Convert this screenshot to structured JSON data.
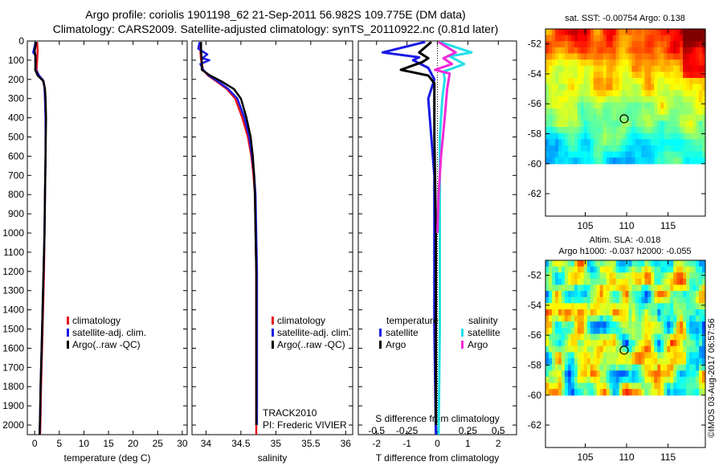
{
  "header": {
    "title_line1": "Argo profile: coriolis 1901198_62 21-Sep-2011 56.982S 109.775E (DM data)",
    "title_line2": "Climatology: CARS2009. Satellite-adjusted climatology: synTS_20110922.nc (0.81d later)"
  },
  "colors": {
    "climatology": "#e8141c",
    "satellite": "#1a1ae6",
    "argo": "#000000",
    "sat_salinity": "#22e0e8",
    "argo_salinity": "#f02ad8"
  },
  "depth_axis": {
    "ylim": [
      0,
      2050
    ],
    "ticks": [
      0,
      100,
      200,
      300,
      400,
      500,
      600,
      700,
      800,
      900,
      1000,
      1100,
      1200,
      1300,
      1400,
      1500,
      1600,
      1700,
      1800,
      1900,
      2000
    ]
  },
  "chart_data": [
    {
      "type": "line",
      "id": "temperature",
      "xlabel": "temperature (deg C)",
      "xlim": [
        -1.5,
        31
      ],
      "xticks": [
        0,
        5,
        10,
        15,
        20,
        25,
        30
      ],
      "legend": [
        "climatology",
        "satellite-adj. clim.",
        "Argo(..raw -QC)"
      ],
      "series": [
        {
          "name": "climatology",
          "color": "#e8141c",
          "points": [
            [
              0.5,
              5
            ],
            [
              0.6,
              50
            ],
            [
              0.5,
              100
            ],
            [
              0.4,
              150
            ],
            [
              0.9,
              185
            ],
            [
              1.6,
              200
            ],
            [
              2.0,
              240
            ],
            [
              2.1,
              300
            ],
            [
              2.2,
              400
            ],
            [
              2.2,
              600
            ],
            [
              2.1,
              800
            ],
            [
              2.0,
              1000
            ],
            [
              1.9,
              1200
            ],
            [
              1.7,
              1400
            ],
            [
              1.5,
              1600
            ],
            [
              1.3,
              1800
            ],
            [
              1.2,
              1950
            ],
            [
              1.1,
              2050
            ]
          ]
        },
        {
          "name": "satellite-adj. clim.",
          "color": "#1a1ae6",
          "points": [
            [
              0.2,
              5
            ],
            [
              -0.3,
              60
            ],
            [
              0.2,
              75
            ],
            [
              0.1,
              100
            ],
            [
              0.2,
              150
            ],
            [
              0.9,
              180
            ],
            [
              1.7,
              205
            ],
            [
              2.0,
              240
            ],
            [
              2.1,
              300
            ],
            [
              2.2,
              400
            ],
            [
              2.2,
              600
            ],
            [
              2.1,
              800
            ],
            [
              2.0,
              1000
            ],
            [
              1.8,
              1200
            ],
            [
              1.6,
              1400
            ],
            [
              1.4,
              1600
            ],
            [
              1.2,
              1800
            ],
            [
              1.1,
              1950
            ],
            [
              1.0,
              2050
            ]
          ]
        },
        {
          "name": "Argo(..raw -QC)",
          "color": "#000000",
          "points": [
            [
              0.3,
              5
            ],
            [
              0.0,
              50
            ],
            [
              0.2,
              100
            ],
            [
              0.1,
              150
            ],
            [
              0.6,
              180
            ],
            [
              1.8,
              210
            ],
            [
              2.1,
              250
            ],
            [
              2.2,
              300
            ],
            [
              2.3,
              400
            ],
            [
              2.2,
              600
            ],
            [
              2.1,
              800
            ],
            [
              2.0,
              1000
            ],
            [
              1.8,
              1200
            ],
            [
              1.6,
              1400
            ],
            [
              1.4,
              1600
            ],
            [
              1.2,
              1800
            ],
            [
              1.1,
              1950
            ],
            [
              1.0,
              2050
            ]
          ]
        }
      ]
    },
    {
      "type": "line",
      "id": "salinity",
      "xlabel": "salinity",
      "xlim": [
        33.8,
        36.1
      ],
      "xticks": [
        34,
        34.5,
        35,
        35.5,
        36
      ],
      "xticklabels": [
        "34",
        "34.5",
        "35",
        "35.5",
        "36"
      ],
      "legend": [
        "climatology",
        "satellite-adj. clim.",
        "Argo(..raw -QC)"
      ],
      "annotations": [
        "TRACK2010",
        "PI: Frederic VIVIER"
      ],
      "series": [
        {
          "name": "climatology",
          "color": "#e8141c",
          "points": [
            [
              33.92,
              5
            ],
            [
              33.92,
              50
            ],
            [
              33.93,
              100
            ],
            [
              33.96,
              150
            ],
            [
              34.03,
              180
            ],
            [
              34.15,
              210
            ],
            [
              34.3,
              250
            ],
            [
              34.42,
              300
            ],
            [
              34.52,
              400
            ],
            [
              34.6,
              500
            ],
            [
              34.65,
              600
            ],
            [
              34.68,
              700
            ],
            [
              34.7,
              800
            ],
            [
              34.71,
              1000
            ],
            [
              34.72,
              1200
            ],
            [
              34.72,
              1500
            ],
            [
              34.72,
              1800
            ],
            [
              34.72,
              2050
            ]
          ]
        },
        {
          "name": "satellite-adj. clim.",
          "color": "#1a1ae6",
          "points": [
            [
              33.91,
              5
            ],
            [
              33.89,
              40
            ],
            [
              34.02,
              70
            ],
            [
              33.95,
              90
            ],
            [
              34.05,
              100
            ],
            [
              33.92,
              120
            ],
            [
              33.96,
              150
            ],
            [
              34.04,
              180
            ],
            [
              34.17,
              210
            ],
            [
              34.32,
              250
            ],
            [
              34.45,
              300
            ],
            [
              34.55,
              400
            ],
            [
              34.62,
              500
            ],
            [
              34.66,
              600
            ],
            [
              34.69,
              700
            ],
            [
              34.71,
              800
            ],
            [
              34.72,
              1000
            ],
            [
              34.73,
              1200
            ],
            [
              34.73,
              1500
            ],
            [
              34.73,
              1800
            ],
            [
              34.73,
              2000
            ]
          ]
        },
        {
          "name": "Argo(..raw -QC)",
          "color": "#000000",
          "points": [
            [
              33.93,
              5
            ],
            [
              33.93,
              50
            ],
            [
              33.94,
              100
            ],
            [
              33.94,
              150
            ],
            [
              34.06,
              180
            ],
            [
              34.22,
              210
            ],
            [
              34.4,
              250
            ],
            [
              34.5,
              300
            ],
            [
              34.58,
              400
            ],
            [
              34.64,
              500
            ],
            [
              34.67,
              600
            ],
            [
              34.69,
              700
            ],
            [
              34.7,
              800
            ],
            [
              34.71,
              1000
            ],
            [
              34.72,
              1200
            ],
            [
              34.72,
              1500
            ],
            [
              34.72,
              1800
            ],
            [
              34.72,
              2000
            ]
          ]
        }
      ]
    },
    {
      "type": "line",
      "id": "difference",
      "xlabel": "T difference from climatology",
      "xlabel_top": "S difference from climatology",
      "xlim": [
        -2.6,
        2.6
      ],
      "xticks": [
        -2,
        -1,
        0,
        1,
        2
      ],
      "xticks_S": [
        -0.5,
        -0.25,
        0,
        0.25,
        0.5
      ],
      "xticklabels_S": [
        "-0.5",
        "-0.25",
        "0",
        "0.25",
        "0.5"
      ],
      "legend_left_title": "temperature",
      "legend_right_title": "salinity",
      "legend_left": [
        "satellite",
        "Argo"
      ],
      "legend_right": [
        "satellite",
        "Argo"
      ],
      "series": [
        {
          "name": "satellite",
          "quantity": "temperature",
          "color": "#1a1ae6",
          "points": [
            [
              -0.4,
              5
            ],
            [
              -1.8,
              60
            ],
            [
              -0.6,
              85
            ],
            [
              -0.8,
              100
            ],
            [
              -0.3,
              140
            ],
            [
              -0.1,
              200
            ],
            [
              -0.3,
              300
            ],
            [
              -0.2,
              500
            ],
            [
              -0.1,
              700
            ],
            [
              -0.1,
              1000
            ],
            [
              -0.1,
              1500
            ],
            [
              -0.05,
              2050
            ]
          ]
        },
        {
          "name": "Argo",
          "quantity": "temperature",
          "color": "#000000",
          "points": [
            [
              -0.2,
              5
            ],
            [
              -0.6,
              60
            ],
            [
              -0.3,
              90
            ],
            [
              -0.5,
              110
            ],
            [
              -1.2,
              150
            ],
            [
              -0.3,
              180
            ],
            [
              -0.1,
              220
            ],
            [
              -0.1,
              500
            ],
            [
              -0.05,
              1000
            ],
            [
              -0.05,
              1500
            ],
            [
              -0.05,
              2000
            ]
          ]
        },
        {
          "name": "satellite",
          "quantity": "salinity",
          "color": "#22e0e8",
          "points": [
            [
              0.02,
              5
            ],
            [
              0.28,
              60
            ],
            [
              0.1,
              80
            ],
            [
              0.22,
              120
            ],
            [
              0.05,
              160
            ],
            [
              0.06,
              200
            ],
            [
              0.04,
              300
            ],
            [
              0.02,
              500
            ],
            [
              0.02,
              1000
            ],
            [
              0.02,
              1500
            ],
            [
              0.01,
              2050
            ]
          ]
        },
        {
          "name": "Argo",
          "quantity": "salinity",
          "color": "#f02ad8",
          "points": [
            [
              0.01,
              5
            ],
            [
              0.15,
              60
            ],
            [
              0.05,
              90
            ],
            [
              0.12,
              120
            ],
            [
              -0.02,
              150
            ],
            [
              0.1,
              170
            ],
            [
              0.08,
              250
            ],
            [
              0.06,
              400
            ],
            [
              0.03,
              600
            ],
            [
              0.01,
              800
            ],
            [
              0.0,
              1000
            ]
          ]
        }
      ]
    },
    {
      "type": "heatmap",
      "id": "sat-sst",
      "title": "sat. SST: -0.00754  Argo: 0.138",
      "xlim": [
        100.2,
        119.5
      ],
      "ylim": [
        -63.5,
        -51
      ],
      "data_ylim": [
        -60,
        -51
      ],
      "xticks": [
        105,
        110,
        115
      ],
      "yticks": [
        -52,
        -54,
        -56,
        -58,
        -60,
        -62
      ],
      "marker": [
        109.7,
        -57.0
      ],
      "colormap": "jet"
    },
    {
      "type": "heatmap",
      "id": "altim-sla",
      "title_line1": "Altim. SLA: -0.018",
      "title_line2": "Argo h1000: -0.037 h2000: -0.055",
      "xlim": [
        100.2,
        119.5
      ],
      "ylim": [
        -63.5,
        -51
      ],
      "data_ylim": [
        -60,
        -51
      ],
      "xticks": [
        105,
        110,
        115
      ],
      "yticks": [
        -52,
        -54,
        -56,
        -58,
        -60,
        -62
      ],
      "marker": [
        109.7,
        -57.0
      ],
      "colormap": "jet"
    }
  ],
  "footer": {
    "stamp": "©IMOS 03-Aug-2017 06:57:56"
  }
}
